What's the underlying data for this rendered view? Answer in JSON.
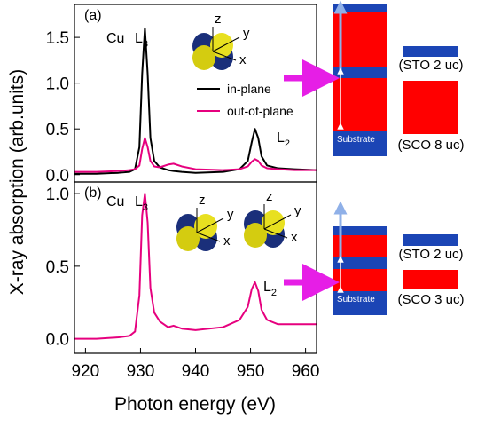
{
  "figure": {
    "y_label": "X-ray absorption (arb.units)",
    "x_label": "Photon energy (eV)"
  },
  "chart_data": [
    {
      "type": "line",
      "panel_label": "(a)",
      "x": [
        918,
        922,
        926,
        928,
        929,
        929.8,
        930.3,
        930.8,
        931.3,
        931.8,
        932.5,
        933.5,
        935,
        936,
        937.5,
        940,
        945,
        948,
        949.5,
        950.2,
        950.8,
        951.4,
        952,
        953,
        955,
        958,
        962
      ],
      "series": [
        {
          "name": "in-plane",
          "color": "#000000",
          "values": [
            0.01,
            0.01,
            0.02,
            0.03,
            0.06,
            0.3,
            1.1,
            1.6,
            1.1,
            0.4,
            0.15,
            0.08,
            0.05,
            0.04,
            0.03,
            0.02,
            0.03,
            0.06,
            0.15,
            0.35,
            0.5,
            0.4,
            0.2,
            0.1,
            0.07,
            0.06,
            0.05
          ]
        },
        {
          "name": "out-of-plane",
          "color": "#e6007e",
          "values": [
            0.03,
            0.03,
            0.04,
            0.05,
            0.06,
            0.1,
            0.28,
            0.4,
            0.3,
            0.15,
            0.09,
            0.08,
            0.11,
            0.12,
            0.09,
            0.06,
            0.05,
            0.06,
            0.09,
            0.14,
            0.17,
            0.15,
            0.1,
            0.07,
            0.06,
            0.05,
            0.05
          ]
        }
      ],
      "xlim": [
        918,
        962
      ],
      "ylim": [
        -0.08,
        1.86
      ],
      "yticks": [
        {
          "value": 0,
          "label": "0.0"
        },
        0.5,
        {
          "value": 1,
          "label": "1.0"
        },
        1.5
      ],
      "legend": "center-right",
      "annotations": [
        {
          "text": "Cu"
        },
        {
          "text": "L",
          "sub": "3"
        },
        {
          "text": "L",
          "sub": "2"
        }
      ],
      "orbital_axes": [
        [
          "z",
          "y",
          "x"
        ]
      ]
    },
    {
      "type": "line",
      "panel_label": "(b)",
      "x": [
        918,
        922,
        926,
        928,
        929,
        929.8,
        930.3,
        930.8,
        931.3,
        931.8,
        932.5,
        933.5,
        935,
        936,
        937.5,
        940,
        945,
        948,
        949.5,
        950.2,
        950.8,
        951.4,
        952,
        953,
        955,
        958,
        962
      ],
      "series": [
        {
          "color": "#e6007e",
          "values": [
            0.0,
            0.0,
            0.01,
            0.02,
            0.05,
            0.3,
            0.85,
            1.0,
            0.8,
            0.35,
            0.18,
            0.12,
            0.08,
            0.09,
            0.07,
            0.06,
            0.08,
            0.13,
            0.22,
            0.34,
            0.39,
            0.33,
            0.2,
            0.13,
            0.1,
            0.1,
            0.1
          ]
        }
      ],
      "xlim": [
        918,
        962
      ],
      "ylim": [
        -0.1,
        1.08
      ],
      "xticks": [
        920,
        930,
        940,
        950,
        960
      ],
      "yticks": [
        {
          "value": 0,
          "label": "0.0"
        },
        0.5,
        {
          "value": 1,
          "label": "1.0"
        }
      ],
      "annotations": [
        {
          "text": "Cu"
        },
        {
          "text": "L",
          "sub": "3"
        },
        {
          "text": "L",
          "sub": "2"
        }
      ],
      "orbital_axes": [
        [
          "z",
          "y",
          "x"
        ],
        [
          "z",
          "y",
          "x"
        ]
      ]
    }
  ],
  "diagram": [
    {
      "substrate": "Substrate",
      "labels": [
        "(STO 2 uc)",
        "(SCO 8 uc)"
      ]
    },
    {
      "substrate": "Substrate",
      "labels": [
        "(STO 2 uc)",
        "(SCO 3 uc)"
      ]
    }
  ]
}
